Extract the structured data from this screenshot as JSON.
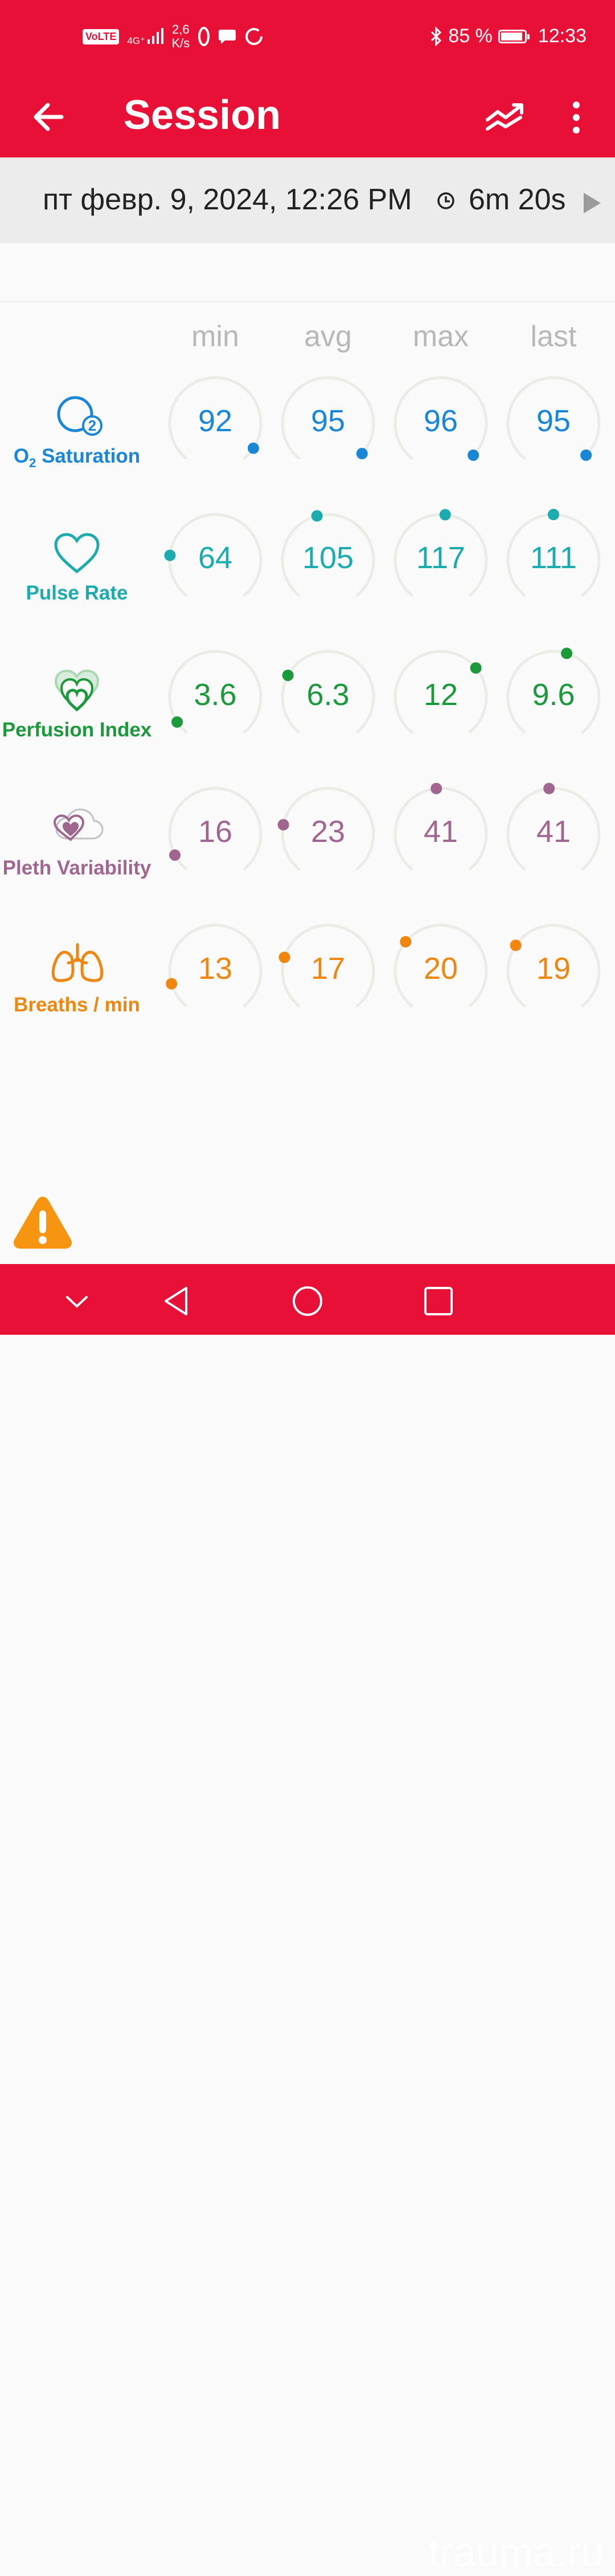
{
  "status_bar": {
    "volte": "VoLTE",
    "network": "4G⁺",
    "speed_value": "2,6",
    "speed_unit": "K/s",
    "battery_percent": "85 %",
    "battery_level": 0.85,
    "time": "12:33"
  },
  "app_bar": {
    "title": "Session"
  },
  "session": {
    "datetime": "пт февр. 9, 2024, 12:26 PM",
    "duration": "6m 20s"
  },
  "columns": [
    "min",
    "avg",
    "max",
    "last"
  ],
  "metrics": [
    {
      "label_main": "O",
      "label_sub": "2",
      "label_rest": " Saturation",
      "color": "#1a86d8",
      "icon": "o2-icon",
      "values": [
        "92",
        "95",
        "96",
        "95"
      ],
      "levels": [
        0.94,
        0.97,
        0.98,
        0.98
      ]
    },
    {
      "label": "Pulse Rate",
      "color": "#1aacae",
      "icon": "heart-icon",
      "values": [
        "64",
        "105",
        "117",
        "111"
      ],
      "levels": [
        0.2,
        0.45,
        0.52,
        0.5
      ]
    },
    {
      "label": "Perfusion Index",
      "color": "#1a9a3a",
      "icon": "perfusion-icon",
      "values": [
        "3.6",
        "6.3",
        "12",
        "9.6"
      ],
      "levels": [
        0.06,
        0.28,
        0.68,
        0.56
      ]
    },
    {
      "label": "Pleth Variability",
      "color": "#a06690",
      "icon": "pleth-icon",
      "values": [
        "16",
        "23",
        "41",
        "41"
      ],
      "levels": [
        0.08,
        0.22,
        0.48,
        0.48
      ]
    },
    {
      "label": "Breaths / min",
      "color": "#f0860e",
      "icon": "lungs-icon",
      "values": [
        "13",
        "17",
        "20",
        "19"
      ],
      "levels": [
        0.12,
        0.24,
        0.32,
        0.3
      ]
    }
  ],
  "watermark": "trauma.ru",
  "colors": {
    "brand": "#e81036",
    "track": "#ecece6",
    "warning": "#f79511"
  }
}
